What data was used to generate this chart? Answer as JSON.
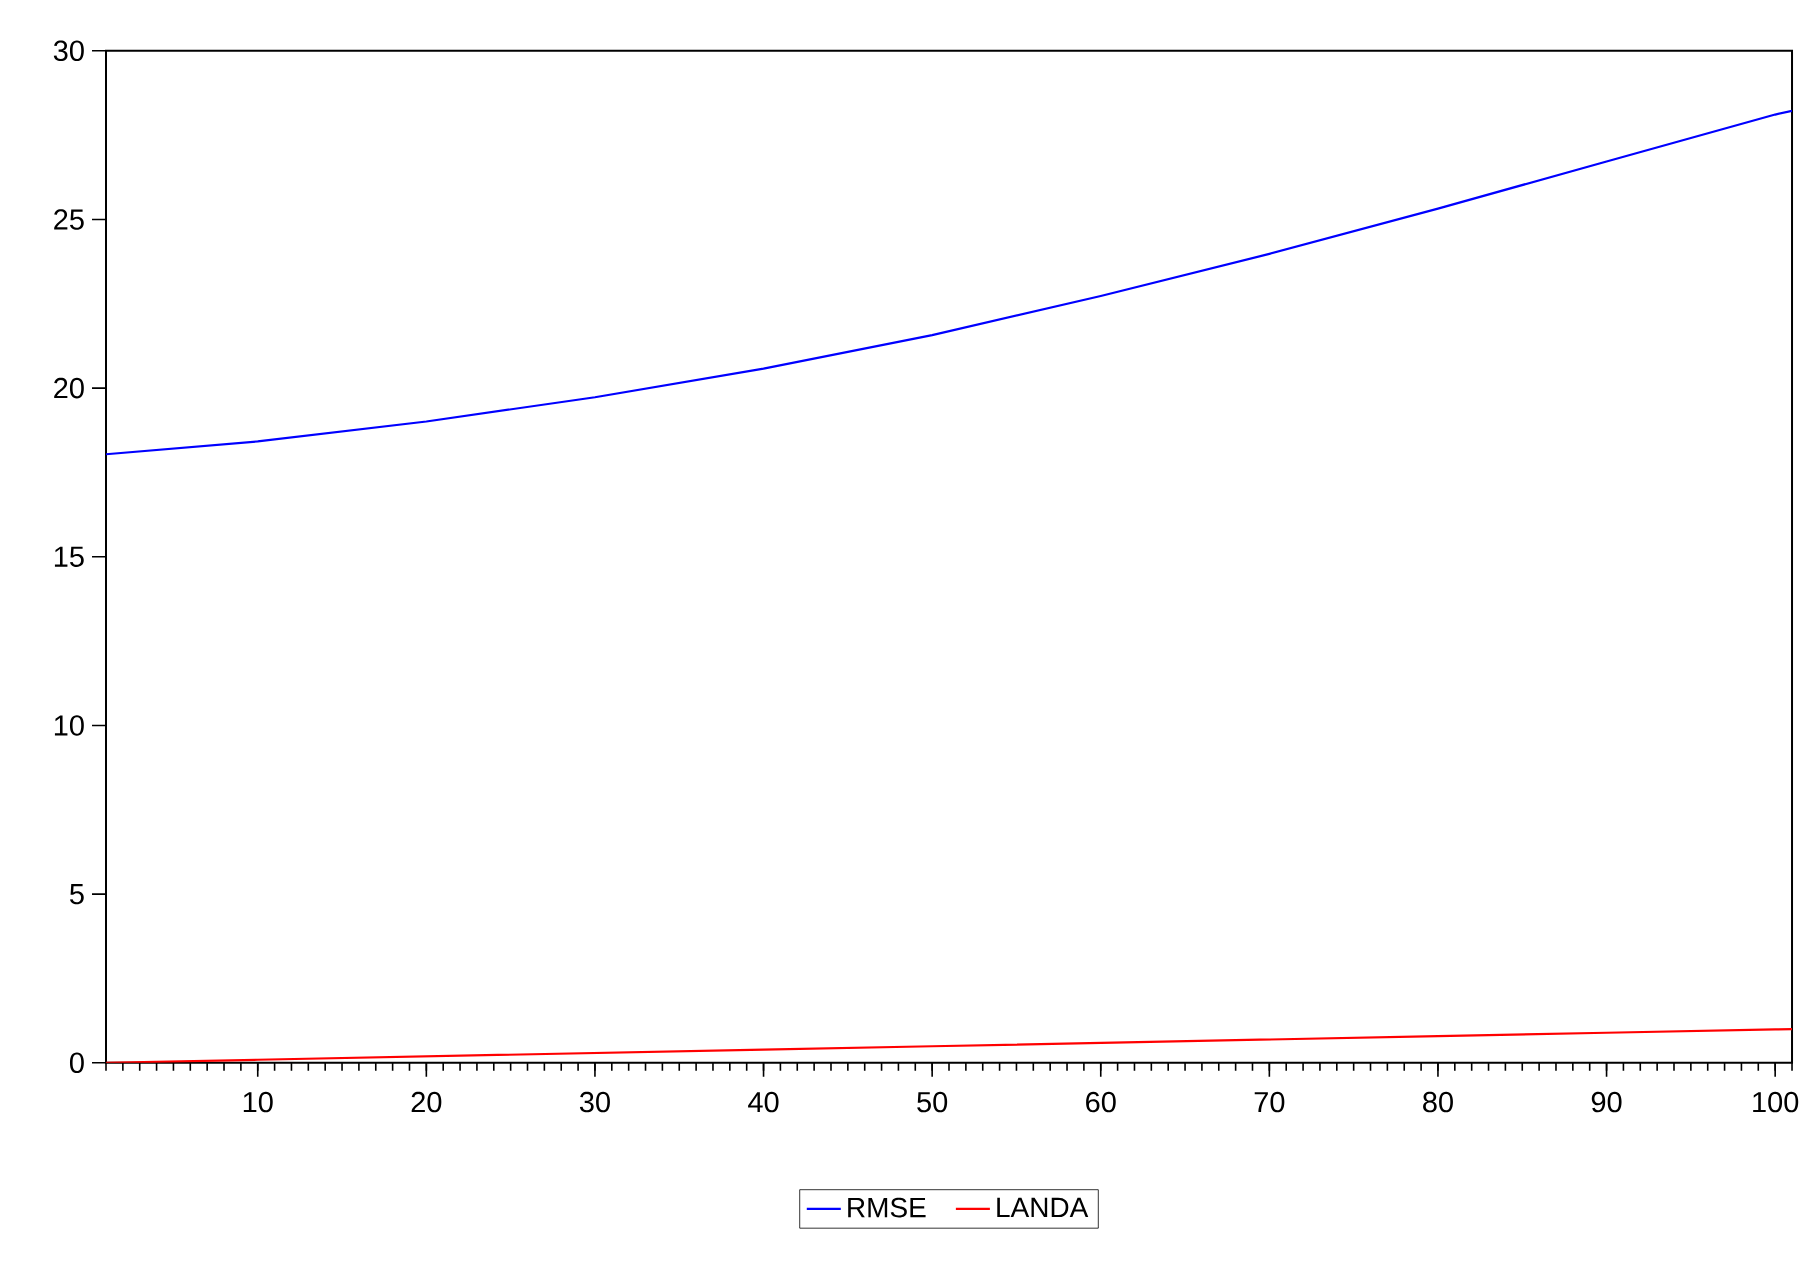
{
  "chart_data": {
    "type": "line",
    "x": [
      1,
      10,
      20,
      30,
      40,
      50,
      60,
      70,
      80,
      90,
      100,
      101
    ],
    "series": [
      {
        "name": "RMSE",
        "color": "#0000ff",
        "values": [
          18.04,
          18.42,
          19.01,
          19.73,
          20.58,
          21.57,
          22.73,
          23.98,
          25.32,
          26.72,
          28.11,
          28.22
        ]
      },
      {
        "name": "LANDA",
        "color": "#ff0000",
        "values": [
          0,
          0.09,
          0.19,
          0.29,
          0.39,
          0.49,
          0.59,
          0.69,
          0.79,
          0.89,
          0.99,
          1.0
        ]
      }
    ],
    "xlim": [
      1,
      101
    ],
    "xticks": [
      10,
      20,
      30,
      40,
      50,
      60,
      70,
      80,
      90,
      100
    ],
    "ylim": [
      0,
      30
    ],
    "yticks": [
      0,
      5,
      10,
      15,
      20,
      25,
      30
    ],
    "grid": false,
    "legend": "bottom",
    "marker": "none",
    "line_style": "solid"
  }
}
